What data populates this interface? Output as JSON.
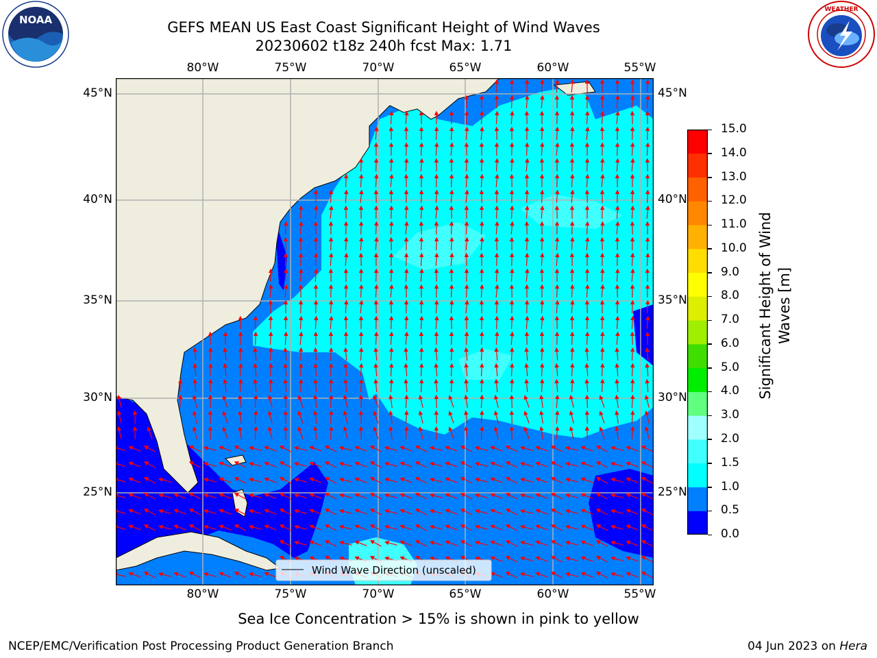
{
  "title": {
    "line1": "GEFS MEAN US East Coast Significant Height of Wind Waves",
    "line2": "20230602 t18z 240h fcst   Max: 1.71"
  },
  "logos": {
    "noaa_text": "NOAA",
    "nws_text": "NATIONAL WEATHER SERVICE"
  },
  "map": {
    "lon_labels": [
      "80°W",
      "75°W",
      "70°W",
      "65°W",
      "60°W",
      "55°W"
    ],
    "lat_labels": [
      "45°N",
      "40°N",
      "35°N",
      "30°N",
      "25°N"
    ],
    "legend_label": "Wind Wave Direction (unscaled)",
    "land_color": "#efedde",
    "grid_color": "#b0b0b0",
    "arrow_color": "#ff0000",
    "lon_range": [
      -85,
      -54
    ],
    "lat_range": [
      20.5,
      46
    ]
  },
  "colorbar": {
    "label": "Significant Height of Wind Waves [m]",
    "ticks": [
      "0.0",
      "0.5",
      "1.0",
      "1.5",
      "2.0",
      "3.0",
      "4.0",
      "5.0",
      "6.0",
      "7.0",
      "8.0",
      "9.0",
      "10.0",
      "11.0",
      "12.0",
      "13.0",
      "14.0",
      "15.0"
    ],
    "colors": [
      "#0000ff",
      "#0080ff",
      "#00ffff",
      "#40ffff",
      "#a0ffff",
      "#60ff80",
      "#00ee00",
      "#40dd00",
      "#a0ee00",
      "#ddee00",
      "#ffff00",
      "#ffdd00",
      "#ffb000",
      "#ff8800",
      "#ff6000",
      "#ff3000",
      "#ff0000"
    ]
  },
  "footer": {
    "sea_ice": "Sea Ice Concentration > 15% is shown in pink to yellow",
    "left": "NCEP/EMC/Verification Post Processing Product Generation Branch",
    "right_prefix": "04 Jun 2023 on ",
    "right_machine": "Hera"
  }
}
